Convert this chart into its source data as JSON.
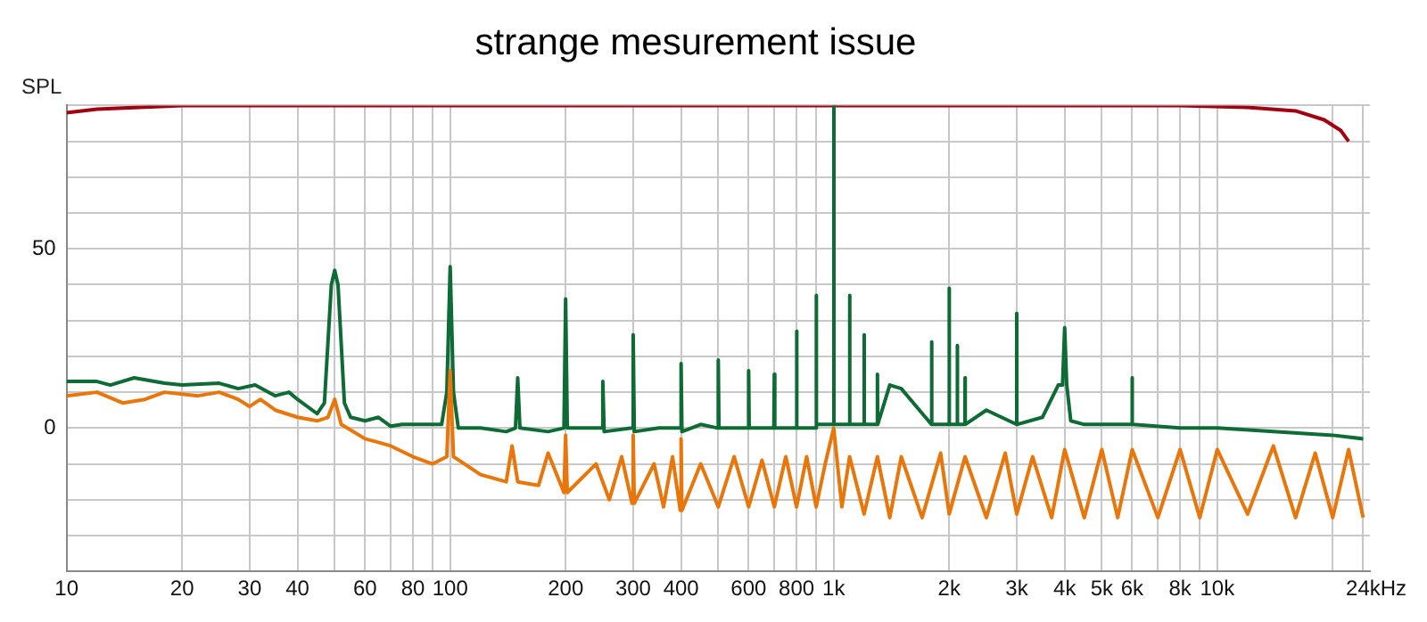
{
  "chart_data": {
    "type": "line",
    "title": "strange mesurement issue",
    "ylabel": "SPL",
    "log": "x",
    "grid": true,
    "marker": "none",
    "line_style": "solid",
    "xlim": [
      10,
      25000
    ],
    "ylim": [
      -40,
      90
    ],
    "xticks": [
      10,
      20,
      30,
      40,
      {
        "value": 50,
        "label": null
      },
      60,
      {
        "value": 70,
        "label": null
      },
      80,
      {
        "value": 90,
        "label": null
      },
      100,
      200,
      300,
      400,
      {
        "value": 500,
        "label": null
      },
      600,
      {
        "value": 700,
        "label": null
      },
      800,
      {
        "value": 900,
        "label": null
      },
      {
        "value": 1000,
        "label": "1k"
      },
      {
        "value": 2000,
        "label": "2k"
      },
      {
        "value": 3000,
        "label": "3k"
      },
      {
        "value": 4000,
        "label": "4k"
      },
      {
        "value": 5000,
        "label": "5k"
      },
      {
        "value": 6000,
        "label": "6k"
      },
      {
        "value": 7000,
        "label": null
      },
      {
        "value": 8000,
        "label": "8k"
      },
      {
        "value": 9000,
        "label": null
      },
      {
        "value": 10000,
        "label": "10k"
      },
      {
        "value": 20000,
        "label": null
      },
      {
        "value": 24000,
        "label": "24k"
      }
    ],
    "xlabel": "Hz",
    "yticks": [
      {
        "value": -40,
        "label": null
      },
      {
        "value": -30,
        "label": null
      },
      {
        "value": -20,
        "label": null
      },
      {
        "value": -10,
        "label": null
      },
      0,
      {
        "value": 10,
        "label": null
      },
      {
        "value": 20,
        "label": null
      },
      {
        "value": 30,
        "label": null
      },
      {
        "value": 40,
        "label": null
      },
      50,
      {
        "value": 60,
        "label": null
      },
      {
        "value": 70,
        "label": null
      },
      {
        "value": 80,
        "label": null
      },
      {
        "value": 90,
        "label": null
      }
    ],
    "series": [
      {
        "color": "#e8760a",
        "x": [
          10,
          12,
          14,
          16,
          18,
          22,
          25,
          28,
          30,
          32,
          35,
          40,
          45,
          48,
          50,
          52,
          60,
          65,
          70,
          80,
          90,
          98,
          100,
          102,
          120,
          140,
          145,
          150,
          170,
          180,
          198,
          200,
          202,
          240,
          260,
          280,
          298,
          300,
          302,
          340,
          360,
          380,
          398,
          400,
          402,
          450,
          500,
          550,
          600,
          650,
          700,
          750,
          800,
          850,
          900,
          950,
          1000,
          1050,
          1100,
          1200,
          1300,
          1400,
          1500,
          1700,
          1900,
          2000,
          2200,
          2500,
          2800,
          3000,
          3300,
          3700,
          4000,
          4500,
          5000,
          5500,
          6000,
          7000,
          8000,
          9000,
          10000,
          12000,
          14000,
          16000,
          18000,
          20000,
          22000,
          24000
        ],
        "values": [
          9,
          10,
          7,
          8,
          10,
          9,
          10,
          8,
          6,
          8,
          5,
          3,
          2,
          3,
          8,
          1,
          -3,
          -4,
          -5,
          -8,
          -10,
          -8,
          16,
          -8,
          -13,
          -15,
          -5,
          -15,
          -16,
          -7,
          -18,
          -2,
          -18,
          -10,
          -20,
          -8,
          -21,
          -2,
          -21,
          -10,
          -22,
          -8,
          -23,
          -3,
          -23,
          -10,
          -22,
          -8,
          -22,
          -9,
          -22,
          -8,
          -22,
          -8,
          -22,
          -10,
          0,
          -22,
          -8,
          -24,
          -8,
          -25,
          -8,
          -25,
          -7,
          -24,
          -8,
          -25,
          -7,
          -24,
          -8,
          -25,
          -6,
          -25,
          -6,
          -25,
          -6,
          -25,
          -6,
          -25,
          -6,
          -24,
          -5,
          -25,
          -7,
          -25,
          -6,
          -25
        ]
      },
      {
        "color": "#0e6b36",
        "x": [
          10,
          12,
          13,
          15,
          18,
          20,
          25,
          28,
          31,
          35,
          38,
          40,
          45,
          47,
          49,
          50,
          51,
          53,
          55,
          60,
          65,
          70,
          75,
          85,
          95,
          98,
          100,
          102,
          105,
          120,
          140,
          148,
          150,
          152,
          180,
          198,
          200,
          202,
          230,
          248,
          250,
          252,
          298,
          300,
          302,
          350,
          398,
          400,
          402,
          450,
          498,
          500,
          502,
          598,
          600,
          602,
          698,
          700,
          702,
          798,
          800,
          802,
          898,
          900,
          902,
          998,
          1000,
          1002,
          1098,
          1100,
          1102,
          1198,
          1200,
          1202,
          1298,
          1300,
          1302,
          1400,
          1500,
          1798,
          1800,
          1802,
          1998,
          2000,
          2002,
          2098,
          2100,
          2102,
          2198,
          2200,
          2202,
          2500,
          2998,
          3000,
          3002,
          3500,
          3850,
          3950,
          4000,
          4050,
          4150,
          4500,
          5998,
          6000,
          6002,
          8000,
          10000,
          14000,
          20000,
          24000
        ],
        "values": [
          13,
          13,
          12,
          14,
          12.5,
          12,
          12.5,
          11,
          12,
          9,
          10,
          8,
          4,
          7,
          40,
          44,
          40,
          7,
          3,
          2,
          3,
          0.5,
          1,
          1,
          1,
          10,
          45,
          10,
          0,
          0,
          -1,
          0,
          14,
          0,
          -1,
          0,
          36,
          0,
          0,
          0,
          13,
          -1,
          0,
          26,
          -1,
          0,
          0,
          18,
          -1,
          1,
          0,
          19,
          0,
          0,
          16,
          0,
          0,
          15,
          0,
          0,
          27,
          0,
          0,
          37,
          1,
          1,
          90,
          1,
          1,
          37,
          1,
          1,
          26,
          1,
          1,
          15,
          1,
          12,
          11,
          1,
          24,
          1,
          1,
          39,
          1,
          1,
          23,
          1,
          1,
          14,
          1,
          5,
          1,
          32,
          1,
          3,
          12,
          12,
          28,
          12,
          2,
          1,
          1,
          14,
          1,
          0,
          0,
          -1,
          -2,
          -3
        ]
      },
      {
        "color": "#a00010",
        "x": [
          10,
          12,
          20,
          100,
          1000,
          8000,
          12000,
          16000,
          19000,
          21000,
          22000
        ],
        "values": [
          88,
          89,
          90,
          90,
          90,
          90,
          89.5,
          88.5,
          86,
          83,
          80
        ]
      }
    ]
  }
}
